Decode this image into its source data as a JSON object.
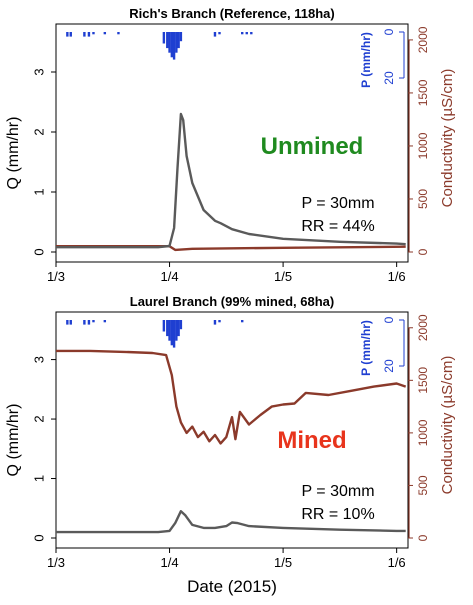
{
  "xlabel": "Date (2015)",
  "colors": {
    "discharge": "#5a5a5a",
    "conductivity": "#8b3a2b",
    "precip": "#1f3fd1",
    "unmined": "#1f8a1f",
    "mined": "#e8341c"
  },
  "chart_data": [
    {
      "type": "line",
      "title": "Rich's Branch (Reference, 118ha)",
      "label": "Unmined",
      "ylabel": "Q (mm/hr)",
      "ylim": [
        0,
        3.8
      ],
      "yticks": [
        "0",
        "1",
        "2",
        "3"
      ],
      "y2label": "Conductivity (µS/cm)",
      "y2lim": [
        0,
        2150
      ],
      "y2ticks": [
        "0",
        "500",
        "1000",
        "1500",
        "2000"
      ],
      "plabel": "P (mm/hr)",
      "pticks": [
        "0",
        "20"
      ],
      "xticks": [
        "1/3",
        "1/4",
        "1/5",
        "1/6"
      ],
      "xlim": [
        0,
        3.1
      ],
      "annotation_p": "P = 30mm",
      "annotation_rr": "RR = 44%",
      "precip_x": [
        0.1,
        0.13,
        0.25,
        0.29,
        0.33,
        0.43,
        0.55,
        0.95,
        0.98,
        1.0,
        1.02,
        1.04,
        1.06,
        1.08,
        1.1,
        1.4,
        1.44,
        1.64,
        1.68,
        1.72
      ],
      "precip_mm": [
        2,
        2,
        2,
        2,
        1,
        1,
        1,
        5,
        7,
        9,
        11,
        12,
        9,
        7,
        4,
        2,
        1,
        1,
        1,
        1
      ],
      "discharge": {
        "x": [
          0,
          0.5,
          0.9,
          1.0,
          1.04,
          1.07,
          1.1,
          1.12,
          1.15,
          1.2,
          1.3,
          1.4,
          1.45,
          1.55,
          1.7,
          2.0,
          2.5,
          3.0,
          3.08
        ],
        "y": [
          0.08,
          0.08,
          0.08,
          0.1,
          0.4,
          1.4,
          2.3,
          2.2,
          1.6,
          1.15,
          0.7,
          0.52,
          0.48,
          0.38,
          0.3,
          0.22,
          0.17,
          0.14,
          0.13
        ]
      },
      "conductivity": {
        "x": [
          0,
          0.5,
          1.0,
          1.05,
          1.2,
          2.0,
          3.08
        ],
        "y": [
          55,
          55,
          55,
          20,
          30,
          40,
          50
        ]
      }
    },
    {
      "type": "line",
      "title": "Laurel Branch (99% mined, 68ha)",
      "label": "Mined",
      "ylabel": "Q (mm/hr)",
      "ylim": [
        0,
        3.8
      ],
      "yticks": [
        "0",
        "1",
        "2",
        "3"
      ],
      "y2label": "Conductivity (µS/cm)",
      "y2lim": [
        0,
        2150
      ],
      "y2ticks": [
        "0",
        "500",
        "1000",
        "1500",
        "2000"
      ],
      "plabel": "P (mm/hr)",
      "pticks": [
        "0",
        "20"
      ],
      "xticks": [
        "1/3",
        "1/4",
        "1/5",
        "1/6"
      ],
      "xlim": [
        0,
        3.1
      ],
      "annotation_p": "P = 30mm",
      "annotation_rr": "RR = 10%",
      "precip_x": [
        0.1,
        0.13,
        0.25,
        0.29,
        0.33,
        0.43,
        0.95,
        0.98,
        1.0,
        1.02,
        1.04,
        1.06,
        1.08,
        1.1,
        1.4,
        1.44,
        1.64
      ],
      "precip_mm": [
        2,
        2,
        2,
        2,
        1,
        1,
        5,
        7,
        9,
        11,
        12,
        9,
        7,
        4,
        2,
        1,
        1
      ],
      "discharge": {
        "x": [
          0,
          0.5,
          0.9,
          1.0,
          1.05,
          1.1,
          1.14,
          1.2,
          1.3,
          1.4,
          1.5,
          1.55,
          1.6,
          1.7,
          2.0,
          2.5,
          3.0,
          3.08
        ],
        "y": [
          0.1,
          0.1,
          0.1,
          0.12,
          0.25,
          0.45,
          0.38,
          0.22,
          0.17,
          0.17,
          0.2,
          0.26,
          0.25,
          0.2,
          0.17,
          0.14,
          0.12,
          0.12
        ]
      },
      "conductivity": {
        "x": [
          0,
          0.3,
          0.6,
          0.85,
          0.97,
          1.02,
          1.06,
          1.1,
          1.15,
          1.2,
          1.25,
          1.3,
          1.35,
          1.4,
          1.45,
          1.5,
          1.55,
          1.58,
          1.62,
          1.7,
          1.8,
          1.9,
          2.0,
          2.1,
          2.2,
          2.4,
          2.6,
          2.8,
          3.0,
          3.08
        ],
        "y": [
          1780,
          1780,
          1770,
          1760,
          1740,
          1550,
          1250,
          1100,
          1000,
          1060,
          960,
          1010,
          920,
          980,
          900,
          960,
          1150,
          940,
          1200,
          1080,
          1170,
          1250,
          1270,
          1280,
          1380,
          1360,
          1400,
          1440,
          1470,
          1440
        ]
      }
    }
  ]
}
